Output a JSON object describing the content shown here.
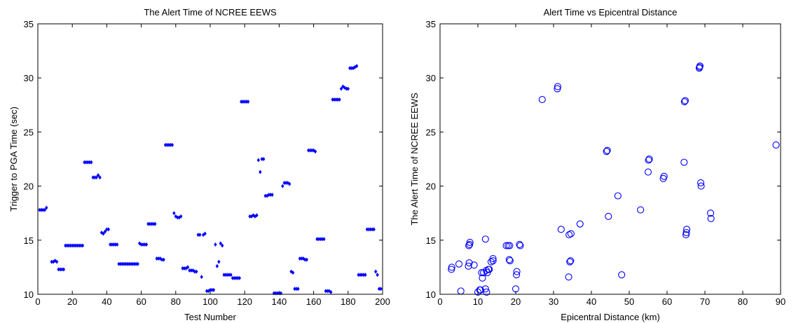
{
  "chart_data": [
    {
      "type": "scatter",
      "title": "The Alert Time of NCREE EEWS",
      "xlabel": "Test Number",
      "ylabel": "Trigger to PGA Time (sec)",
      "xlim": [
        0,
        200
      ],
      "ylim": [
        10,
        35
      ],
      "xticks": [
        0,
        20,
        40,
        60,
        80,
        100,
        120,
        140,
        160,
        180,
        200
      ],
      "yticks": [
        10,
        15,
        20,
        25,
        30,
        35
      ],
      "grid": false,
      "marker": "diamond",
      "color": "#0000ff",
      "series": [
        {
          "x": [
            1,
            2,
            3,
            4,
            5,
            8,
            9,
            10,
            11,
            12,
            13,
            14,
            15,
            16,
            17,
            18,
            19,
            20,
            21,
            22,
            23,
            24,
            25,
            26,
            27,
            28,
            29,
            30,
            31,
            32,
            33,
            34,
            35,
            36,
            37,
            38,
            39,
            40,
            41,
            42,
            43,
            44,
            45,
            46,
            47,
            48,
            49,
            50,
            51,
            52,
            53,
            54,
            55,
            56,
            57,
            58,
            59,
            60,
            61,
            62,
            63,
            64,
            65,
            66,
            67,
            68,
            69,
            70,
            71,
            72,
            73,
            74,
            75,
            76,
            77,
            78,
            79,
            80,
            81,
            82,
            83,
            84,
            85,
            86,
            87,
            88,
            89,
            90,
            91,
            92,
            93,
            94,
            95,
            96,
            97,
            98,
            99,
            100,
            101,
            102,
            103,
            104,
            105,
            106,
            107,
            108,
            109,
            110,
            111,
            112,
            113,
            114,
            115,
            116,
            117,
            118,
            119,
            120,
            121,
            122,
            123,
            124,
            125,
            126,
            127,
            128,
            129,
            130,
            131,
            132,
            133,
            134,
            135,
            136,
            137,
            138,
            139,
            140,
            141,
            142,
            143,
            144,
            145,
            146,
            147,
            148,
            149,
            150,
            151,
            152,
            153,
            154,
            155,
            156,
            157,
            158,
            159,
            160,
            161,
            162,
            163,
            164,
            165,
            166,
            167,
            168,
            169,
            170,
            171,
            172,
            173,
            174,
            175,
            176,
            177,
            178,
            179,
            180,
            181,
            182,
            183,
            184,
            185,
            186,
            187,
            188,
            189,
            190,
            191,
            192,
            193,
            194,
            195,
            196,
            197,
            198,
            199
          ],
          "y": [
            17.8,
            17.8,
            17.8,
            17.8,
            18.0,
            13.0,
            13.0,
            13.1,
            13.0,
            12.3,
            12.3,
            12.3,
            12.3,
            14.5,
            14.5,
            14.5,
            14.5,
            14.5,
            14.5,
            14.5,
            14.5,
            14.5,
            14.5,
            14.5,
            22.2,
            22.2,
            22.2,
            22.2,
            22.2,
            20.8,
            20.8,
            20.8,
            21.0,
            20.8,
            15.7,
            15.6,
            15.8,
            16.0,
            16.0,
            14.6,
            14.6,
            14.6,
            14.6,
            14.6,
            12.8,
            12.8,
            12.8,
            12.8,
            12.8,
            12.8,
            12.8,
            12.8,
            12.8,
            12.8,
            12.8,
            12.8,
            14.7,
            14.6,
            14.6,
            14.6,
            14.6,
            16.5,
            16.5,
            16.5,
            16.5,
            16.5,
            13.3,
            13.3,
            13.3,
            13.2,
            13.2,
            23.8,
            23.8,
            23.8,
            23.8,
            23.8,
            17.5,
            17.2,
            17.1,
            17.1,
            17.2,
            12.4,
            12.4,
            12.4,
            12.5,
            12.2,
            12.2,
            12.2,
            12.1,
            12.1,
            15.5,
            15.5,
            11.6,
            15.5,
            15.6,
            10.3,
            10.3,
            10.4,
            10.4,
            10.4,
            14.6,
            12.6,
            13.0,
            14.7,
            14.5,
            11.8,
            11.8,
            11.8,
            11.8,
            11.8,
            11.5,
            11.5,
            11.5,
            11.5,
            11.5,
            27.8,
            27.8,
            27.8,
            27.8,
            27.8,
            17.2,
            17.2,
            17.3,
            17.2,
            17.3,
            22.4,
            21.3,
            22.5,
            22.5,
            19.1,
            19.1,
            19.2,
            19.2,
            19.2,
            10.1,
            10.1,
            10.1,
            10.1,
            10.1,
            20.0,
            20.3,
            20.3,
            20.3,
            20.2,
            12.1,
            12.0,
            10.5,
            10.5,
            10.5,
            13.3,
            13.3,
            13.3,
            13.2,
            13.2,
            23.3,
            23.3,
            23.3,
            23.3,
            23.2,
            15.1,
            15.1,
            15.1,
            15.1,
            15.1,
            10.3,
            10.3,
            10.3,
            10.2,
            28.0,
            28.0,
            28.0,
            28.0,
            28.0,
            29.0,
            29.2,
            29.1,
            29.0,
            29.0,
            30.9,
            30.9,
            30.9,
            31.0,
            31.1,
            11.8,
            11.8,
            11.8,
            11.8,
            11.8,
            16.0,
            16.0,
            16.0,
            16.0,
            16.0,
            12.1,
            11.8,
            10.5,
            10.5
          ]
        }
      ]
    },
    {
      "type": "scatter",
      "title": "Alert Time vs Epicentral Distance",
      "xlabel": "Epicentral Distance (km)",
      "ylabel": "The Alert Time of NCREE EEWS",
      "xlim": [
        0,
        90
      ],
      "ylim": [
        10,
        35
      ],
      "xticks": [
        0,
        10,
        20,
        30,
        40,
        50,
        60,
        70,
        80,
        90
      ],
      "yticks": [
        10,
        15,
        20,
        25,
        30,
        35
      ],
      "grid": false,
      "marker": "circle",
      "color": "#0000ff",
      "series": [
        {
          "x": [
            3.0,
            3.1,
            5.0,
            5.5,
            7.5,
            7.7,
            7.6,
            7.8,
            7.9,
            9.0,
            10.0,
            10.5,
            10.7,
            11.2,
            11.0,
            11.5,
            12.0,
            12.0,
            12.3,
            12.2,
            12.5,
            12.8,
            13.0,
            13.5,
            14.0,
            14.0,
            17.5,
            18.0,
            18.3,
            18.4,
            18.5,
            20.0,
            20.2,
            20.3,
            21.0,
            21.2,
            27.0,
            31.0,
            31.1,
            32.0,
            34.0,
            34.1,
            34.3,
            34.5,
            34.6,
            37.0,
            44.0,
            44.2,
            44.5,
            47.0,
            48.0,
            53.0,
            55.0,
            55.1,
            55.3,
            59.0,
            59.2,
            64.5,
            64.6,
            64.8,
            65.0,
            65.1,
            65.2,
            68.5,
            68.6,
            68.7,
            68.9,
            69.0,
            71.5,
            71.6,
            88.8
          ],
          "y": [
            12.3,
            12.5,
            12.8,
            10.3,
            12.6,
            12.9,
            14.5,
            14.6,
            14.8,
            12.7,
            10.2,
            10.4,
            10.4,
            11.5,
            12.0,
            12.0,
            15.1,
            10.5,
            10.2,
            12.2,
            12.0,
            12.3,
            12.3,
            13.0,
            13.3,
            13.1,
            14.5,
            14.5,
            13.2,
            14.5,
            13.1,
            10.5,
            11.8,
            12.1,
            14.6,
            14.5,
            28.0,
            29.0,
            29.2,
            16.0,
            11.6,
            15.5,
            13.0,
            13.1,
            15.6,
            16.5,
            23.2,
            23.3,
            17.2,
            19.1,
            11.8,
            17.8,
            21.3,
            22.4,
            22.5,
            20.7,
            20.9,
            22.2,
            27.8,
            27.9,
            15.5,
            15.7,
            16.0,
            30.9,
            31.0,
            31.1,
            20.3,
            20.0,
            17.5,
            17.0,
            23.8
          ]
        }
      ]
    }
  ]
}
